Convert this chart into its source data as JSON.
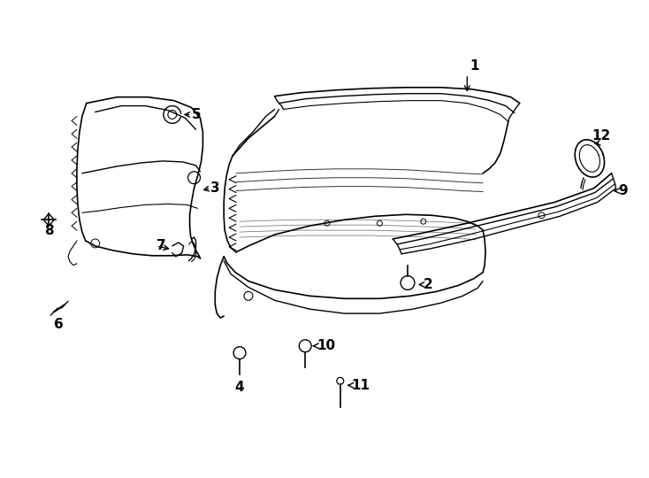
{
  "background_color": "#ffffff",
  "line_color": "#000000",
  "label_fontsize": 11,
  "fig_width": 7.34,
  "fig_height": 5.4,
  "dpi": 100
}
